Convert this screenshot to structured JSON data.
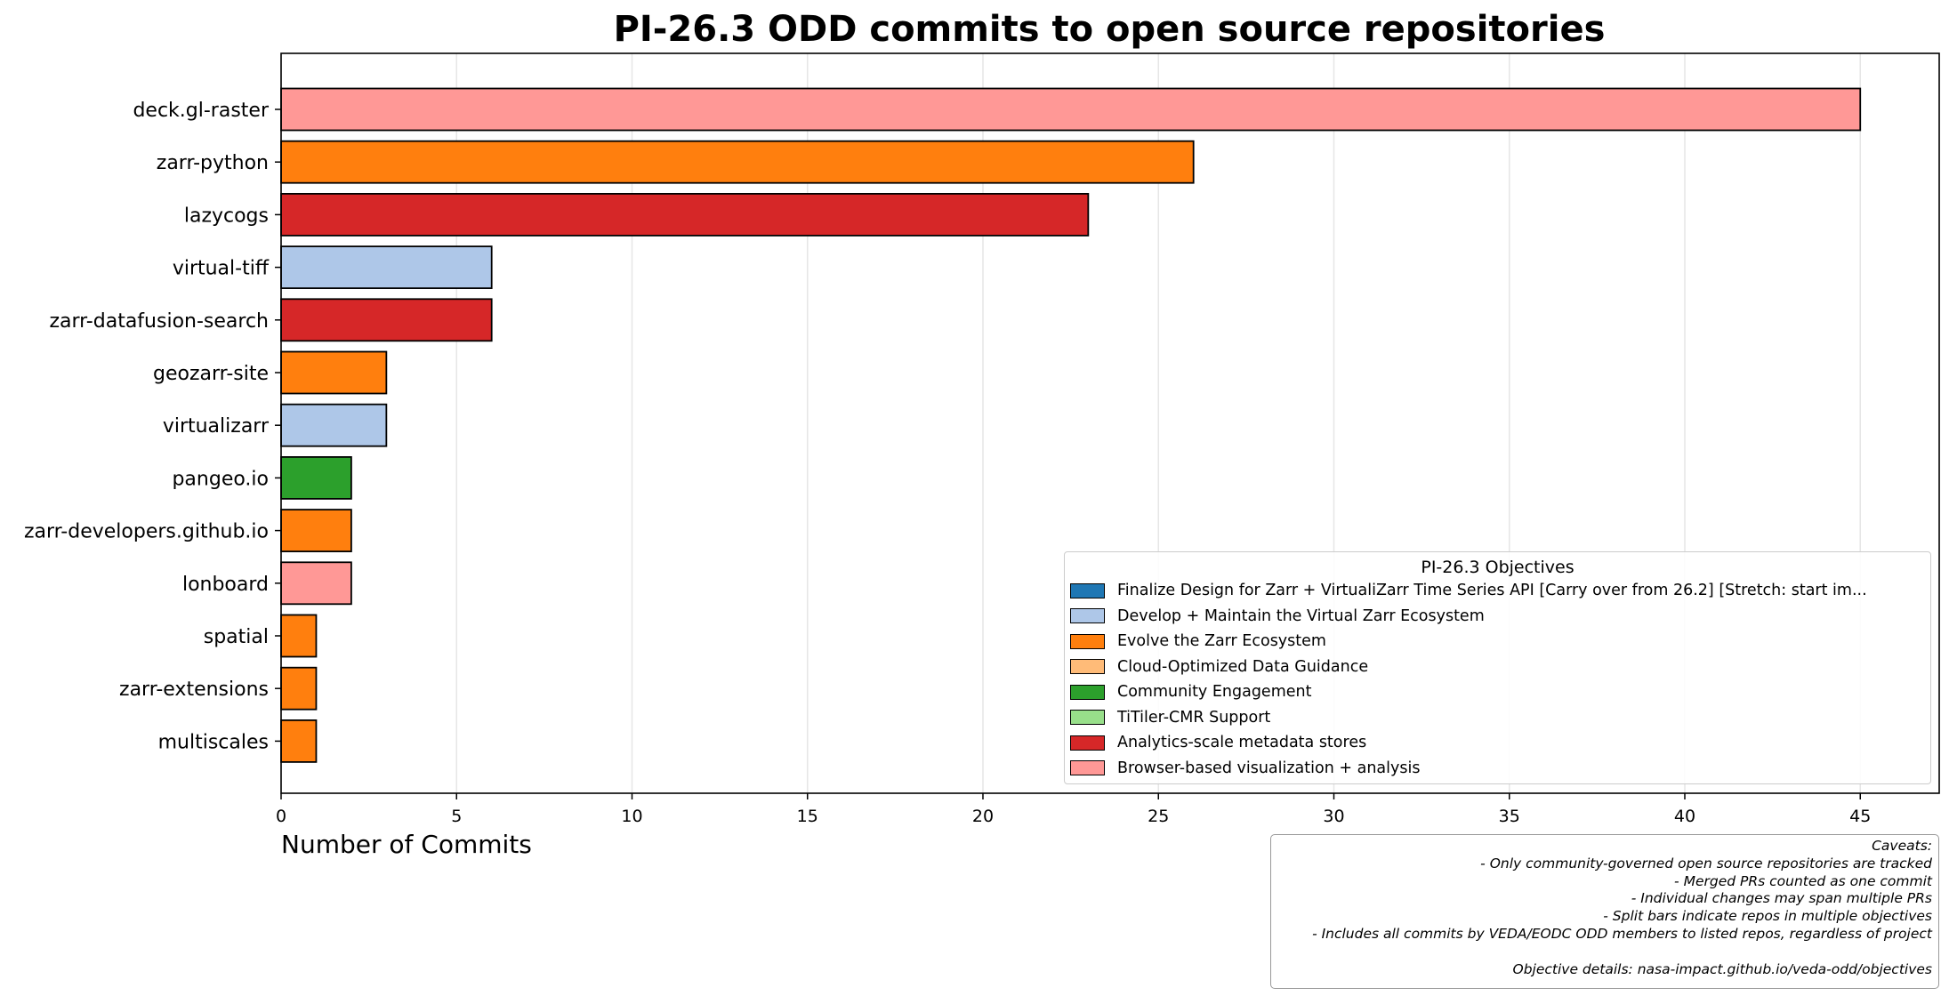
{
  "chart_data": {
    "type": "bar",
    "orientation": "horizontal",
    "title": "PI-26.3 ODD commits to open source repositories",
    "xlabel": "Number of Commits",
    "ylabel": "",
    "xlim": [
      0,
      47.25
    ],
    "xticks": [
      0,
      5,
      10,
      15,
      20,
      25,
      30,
      35,
      40,
      45
    ],
    "grid": "vertical",
    "categories": [
      "deck.gl-raster",
      "zarr-python",
      "lazycogs",
      "virtual-tiff",
      "zarr-datafusion-search",
      "geozarr-site",
      "virtualizarr",
      "pangeo.io",
      "zarr-developers.github.io",
      "lonboard",
      "spatial",
      "zarr-extensions",
      "multiscales"
    ],
    "values": [
      45,
      26,
      23,
      6,
      6,
      3,
      3,
      2,
      2,
      2,
      1,
      1,
      1
    ],
    "bar_objective": [
      7,
      2,
      6,
      1,
      6,
      2,
      1,
      4,
      2,
      7,
      2,
      2,
      2
    ],
    "legend": {
      "title": "PI-26.3 Objectives",
      "placement": "lower right",
      "entries": [
        {
          "label": "Finalize Design for Zarr + VirtualiZarr Time Series API [Carry over from 26.2] [Stretch: start im...",
          "color": "#1f77b4"
        },
        {
          "label": "Develop + Maintain the Virtual Zarr Ecosystem",
          "color": "#aec7e8"
        },
        {
          "label": "Evolve the Zarr Ecosystem",
          "color": "#ff7f0e"
        },
        {
          "label": "Cloud-Optimized Data Guidance",
          "color": "#ffbb78"
        },
        {
          "label": "Community Engagement",
          "color": "#2ca02c"
        },
        {
          "label": " TiTiler-CMR Support",
          "color": "#98df8a"
        },
        {
          "label": " Analytics-scale metadata stores",
          "color": "#d62728"
        },
        {
          "label": "Browser-based visualization + analysis",
          "color": "#ff9896"
        }
      ]
    },
    "caveats": {
      "heading": "Caveats:",
      "lines": [
        "- Only community-governed open source repositories are tracked",
        "- Merged PRs counted as one commit",
        "- Individual changes may span multiple PRs",
        "- Split bars indicate repos in multiple objectives",
        "- Includes all commits by VEDA/EODC ODD members to listed repos, regardless of project"
      ],
      "details": "Objective details: nasa-impact.github.io/veda-odd/objectives"
    }
  }
}
